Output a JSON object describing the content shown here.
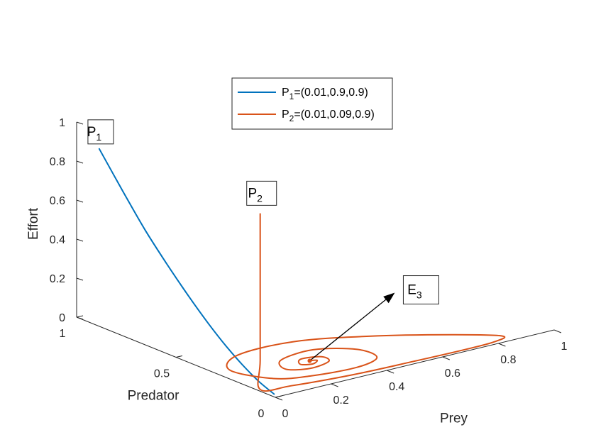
{
  "chart_data": {
    "type": "line",
    "subtype": "3d-phase-trajectory",
    "axes": {
      "x": {
        "label": "Prey",
        "range": [
          0,
          1
        ],
        "ticks": [
          0,
          0.2,
          0.4,
          0.6,
          0.8,
          1
        ],
        "tick_labels": [
          "0",
          "0.2",
          "0.4",
          "0.6",
          "0.8",
          "1"
        ]
      },
      "y": {
        "label": "Predator",
        "range": [
          0,
          1
        ],
        "ticks": [
          0,
          0.5,
          1
        ],
        "tick_labels": [
          "0",
          "0.5",
          "1"
        ]
      },
      "z": {
        "label": "Effort",
        "range": [
          0,
          1
        ],
        "ticks": [
          0,
          0.2,
          0.4,
          0.6,
          0.8,
          1
        ],
        "tick_labels": [
          "0",
          "0.2",
          "0.4",
          "0.6",
          "0.8",
          "1"
        ]
      }
    },
    "grid": false,
    "legend_position": "top-center",
    "series": [
      {
        "name": "P1=(0.01,0.9,0.9)",
        "legend_main": "P",
        "legend_sub": "1",
        "legend_rest": "=(0.01,0.9,0.9)",
        "color": "#0072BD",
        "points": [
          [
            0.01,
            0.9,
            0.9
          ],
          [
            0.01,
            0.78,
            0.73
          ],
          [
            0.01,
            0.67,
            0.58
          ],
          [
            0.01,
            0.56,
            0.45
          ],
          [
            0.01,
            0.45,
            0.33
          ],
          [
            0.01,
            0.35,
            0.23
          ],
          [
            0.01,
            0.26,
            0.15
          ],
          [
            0.01,
            0.18,
            0.09
          ],
          [
            0.01,
            0.1,
            0.04
          ],
          [
            0.01,
            0.02,
            0.005
          ]
        ]
      },
      {
        "name": "P2=(0.01,0.09,0.9)",
        "legend_main": "P",
        "legend_sub": "2",
        "legend_rest": "=(0.01,0.09,0.9)",
        "color": "#D95319",
        "points": [
          [
            0.01,
            0.09,
            0.9
          ],
          [
            0.01,
            0.09,
            0.5
          ],
          [
            0.01,
            0.09,
            0.15
          ],
          [
            0.01,
            0.09,
            0.0
          ],
          [
            0.1,
            0.06,
            0.0
          ],
          [
            0.3,
            0.03,
            0.0
          ],
          [
            0.5,
            0.02,
            0.0
          ],
          [
            0.7,
            0.015,
            0.0
          ],
          [
            0.8,
            0.02,
            0.0
          ],
          [
            0.85,
            0.05,
            0.0
          ],
          [
            0.75,
            0.15,
            0.0
          ],
          [
            0.55,
            0.3,
            0.0
          ],
          [
            0.35,
            0.4,
            0.0
          ],
          [
            0.15,
            0.4,
            0.0
          ],
          [
            0.05,
            0.3,
            0.0
          ],
          [
            0.1,
            0.15,
            0.0
          ],
          [
            0.2,
            0.1,
            0.0
          ],
          [
            0.35,
            0.08,
            0.0
          ],
          [
            0.45,
            0.12,
            0.0
          ],
          [
            0.45,
            0.22,
            0.0
          ],
          [
            0.35,
            0.3,
            0.0
          ],
          [
            0.22,
            0.28,
            0.0
          ],
          [
            0.18,
            0.2,
            0.0
          ],
          [
            0.24,
            0.16,
            0.0
          ],
          [
            0.32,
            0.18,
            0.0
          ],
          [
            0.33,
            0.23,
            0.0
          ],
          [
            0.27,
            0.25,
            0.0
          ],
          [
            0.24,
            0.21,
            0.0
          ],
          [
            0.27,
            0.19,
            0.0
          ],
          [
            0.3,
            0.21,
            0.0
          ],
          [
            0.28,
            0.22,
            0.0
          ]
        ]
      }
    ],
    "annotations": [
      {
        "main": "P",
        "sub": "1"
      },
      {
        "main": "P",
        "sub": "2"
      },
      {
        "main": "E",
        "sub": "3"
      }
    ]
  }
}
